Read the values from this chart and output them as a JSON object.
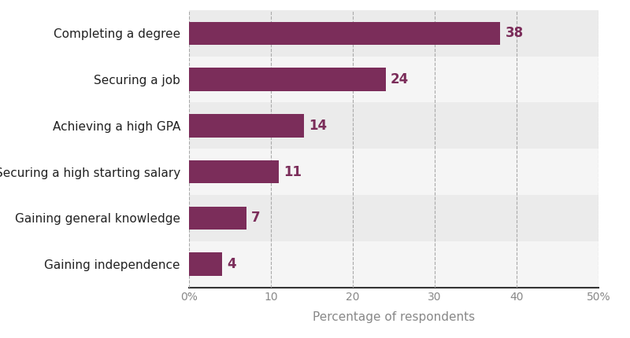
{
  "categories": [
    "Gaining independence",
    "Gaining general knowledge",
    "Securing a high starting salary",
    "Achieving a high GPA",
    "Securing a job",
    "Completing a degree"
  ],
  "values": [
    4,
    7,
    11,
    14,
    24,
    38
  ],
  "bar_color": "#7b2d5a",
  "label_color": "#7b2d5a",
  "xlabel": "Percentage of respondents",
  "xlim": [
    0,
    50
  ],
  "xticks": [
    0,
    10,
    20,
    30,
    40,
    50
  ],
  "xticklabels": [
    "0%",
    "10",
    "20",
    "30",
    "40",
    "50%"
  ],
  "grid_color": "#aaaaaa",
  "bg_color": "#ffffff",
  "plot_bg_color": "#ffffff",
  "row_color_odd": "#ebebeb",
  "row_color_even": "#f5f5f5",
  "bar_height": 0.5,
  "label_fontsize": 11,
  "tick_fontsize": 10,
  "xlabel_fontsize": 11,
  "value_fontsize": 12
}
